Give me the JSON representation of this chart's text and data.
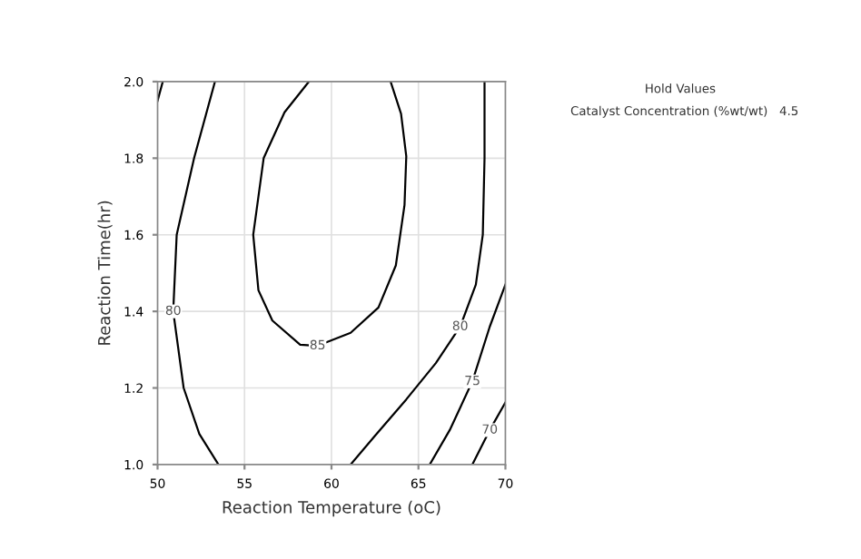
{
  "chart_data": {
    "type": "line",
    "xlabel": "Reaction Temperature (oC)",
    "ylabel": "Reaction Time(hr)",
    "xlim": [
      50,
      70
    ],
    "ylim": [
      1.0,
      2.0
    ],
    "xticks": [
      50,
      55,
      60,
      65,
      70
    ],
    "yticks": [
      {
        "value": 1.0,
        "label": "1.0"
      },
      1.2,
      1.4,
      1.6,
      1.8,
      {
        "value": 2.0,
        "label": "2.0"
      }
    ],
    "grid": true,
    "marker": "none",
    "line_style": "solid",
    "annotations": [
      "Hold Values",
      "Catalyst Concentration (%wt/wt)   4.5"
    ],
    "series": [
      {
        "name": "80",
        "color": "#000000",
        "x": [
          53.3,
          52.1,
          51.1,
          50.9,
          51.5,
          52.4,
          53.5
        ],
        "values": [
          2.0,
          1.8,
          1.6,
          1.4,
          1.2,
          1.08,
          1.0
        ]
      },
      {
        "color": "#000000",
        "x": [
          50.3,
          50.0
        ],
        "values": [
          2.0,
          1.95
        ]
      },
      {
        "name": "85",
        "color": "#000000",
        "x": [
          58.7,
          57.3,
          56.1,
          55.5,
          55.8,
          56.6,
          58.2,
          59.2,
          61.1,
          62.7,
          63.7,
          64.2,
          64.3,
          64.0,
          63.4
        ],
        "values": [
          2.0,
          1.92,
          1.8,
          1.6,
          1.455,
          1.376,
          1.313,
          1.31,
          1.344,
          1.41,
          1.52,
          1.678,
          1.805,
          1.916,
          2.0
        ]
      },
      {
        "name": "80",
        "color": "#000000",
        "x": [
          68.8,
          68.8,
          68.7,
          68.3,
          67.4,
          66.0,
          64.3,
          62.5,
          61.1
        ],
        "values": [
          2.0,
          1.8,
          1.6,
          1.47,
          1.36,
          1.265,
          1.17,
          1.075,
          1.0
        ]
      },
      {
        "name": "75",
        "color": "#000000",
        "x": [
          70.0,
          69.1,
          68.1,
          66.8,
          65.65
        ],
        "values": [
          1.47,
          1.36,
          1.217,
          1.09,
          1.0
        ]
      },
      {
        "name": "70",
        "color": "#000000",
        "x": [
          70.0,
          69.1,
          68.1
        ],
        "values": [
          1.162,
          1.09,
          1.0
        ]
      }
    ]
  }
}
